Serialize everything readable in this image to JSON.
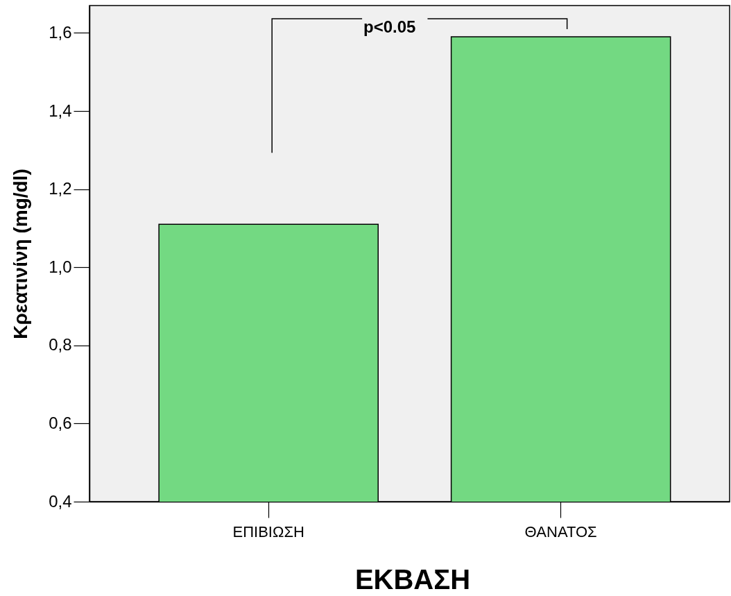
{
  "chart_data": {
    "type": "bar",
    "xlabel": "ΕΚΒΑΣΗ",
    "ylabel": "Κρεατινίνη (mg/dl)",
    "categories": [
      "ΕΠΙΒΙΩΣΗ",
      "ΘΑΝΑΤΟΣ"
    ],
    "values": [
      1.11,
      1.59
    ],
    "color": "#73d982",
    "ylim": [
      0.4,
      1.67
    ],
    "yticks": [
      {
        "value": 0.4,
        "label": "0,4"
      },
      {
        "value": 0.6,
        "label": "0,6"
      },
      {
        "value": 0.8,
        "label": "0,8"
      },
      {
        "value": 1.0,
        "label": "1,0"
      },
      {
        "value": 1.2,
        "label": "1,2"
      },
      {
        "value": 1.4,
        "label": "1,4"
      },
      {
        "value": 1.6,
        "label": "1,6"
      }
    ],
    "annotations": [
      "p<0.05"
    ]
  }
}
